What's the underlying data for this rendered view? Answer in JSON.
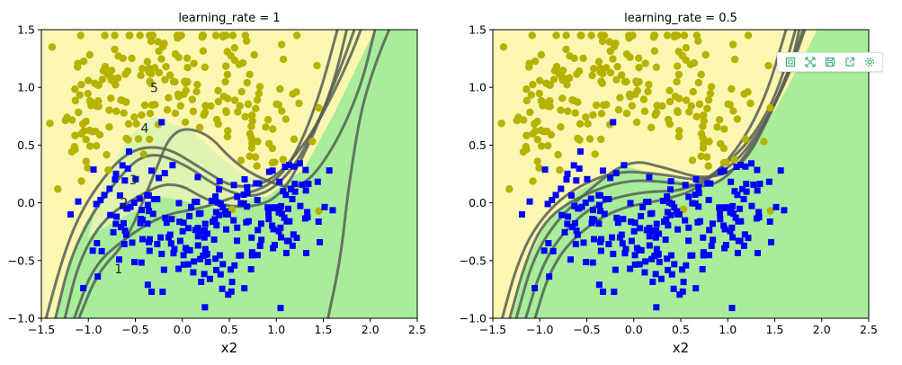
{
  "chart_data": [
    {
      "type": "scatter",
      "title": "learning_rate = 1",
      "xlabel": "x2",
      "ylabel": "",
      "xlim": [
        -1.5,
        2.5
      ],
      "ylim": [
        -1.0,
        1.5
      ],
      "xticks": [
        "−1.5",
        "−1.0",
        "−0.5",
        "0.0",
        "0.5",
        "1.0",
        "1.5",
        "2.0",
        "2.5"
      ],
      "yticks": [
        "−1.0",
        "−0.5",
        "0.0",
        "0.5",
        "1.0",
        "1.5"
      ],
      "annotations": [
        {
          "text": "1",
          "x": -0.68,
          "y": -0.61
        },
        {
          "text": "2",
          "x": -0.62,
          "y": -0.04
        },
        {
          "text": "3",
          "x": -0.52,
          "y": 0.16
        },
        {
          "text": "4",
          "x": -0.4,
          "y": 0.61
        },
        {
          "text": "5",
          "x": -0.3,
          "y": 0.96
        }
      ],
      "colors": {
        "region_yellow": "#fbf6b0",
        "region_green": "#a8ee9a",
        "class0": "#b5b200",
        "class1": "#0000ff",
        "contour": "#555f55"
      }
    },
    {
      "type": "scatter",
      "title": "learning_rate = 0.5",
      "xlabel": "x2",
      "ylabel": "",
      "xlim": [
        -1.5,
        2.5
      ],
      "ylim": [
        -1.0,
        1.5
      ],
      "xticks": [
        "−1.5",
        "−1.0",
        "−0.5",
        "0.0",
        "0.5",
        "1.0",
        "1.5",
        "2.0",
        "2.5"
      ],
      "yticks": [
        "−1.0",
        "−0.5",
        "0.0",
        "0.5",
        "1.0",
        "1.5"
      ],
      "annotations": [],
      "colors": {
        "region_yellow": "#fbf6b0",
        "region_green": "#a8ee9a",
        "class0": "#b5b200",
        "class1": "#0000ff",
        "contour": "#555f55"
      }
    }
  ],
  "toolbar": {
    "icons": [
      "frame-icon",
      "expand-icon",
      "save-icon",
      "export-icon",
      "settings-icon"
    ],
    "accent": "#3cb371"
  }
}
